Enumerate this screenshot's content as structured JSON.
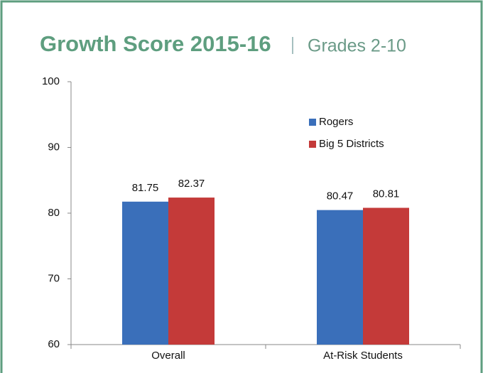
{
  "chart_data": {
    "type": "bar",
    "title": "Growth Score 2015-16",
    "subtitle": "Grades 2-10",
    "categories": [
      "Overall",
      "At-Risk Students"
    ],
    "series": [
      {
        "name": "Rogers",
        "color": "#3a6fba",
        "values": [
          81.75,
          80.47
        ]
      },
      {
        "name": "Big 5 Districts",
        "color": "#c43a39",
        "values": [
          82.37,
          80.81
        ]
      }
    ],
    "ylim": [
      60,
      100
    ],
    "yticks": [
      60,
      70,
      80,
      90,
      100
    ],
    "legend": "upper right"
  }
}
